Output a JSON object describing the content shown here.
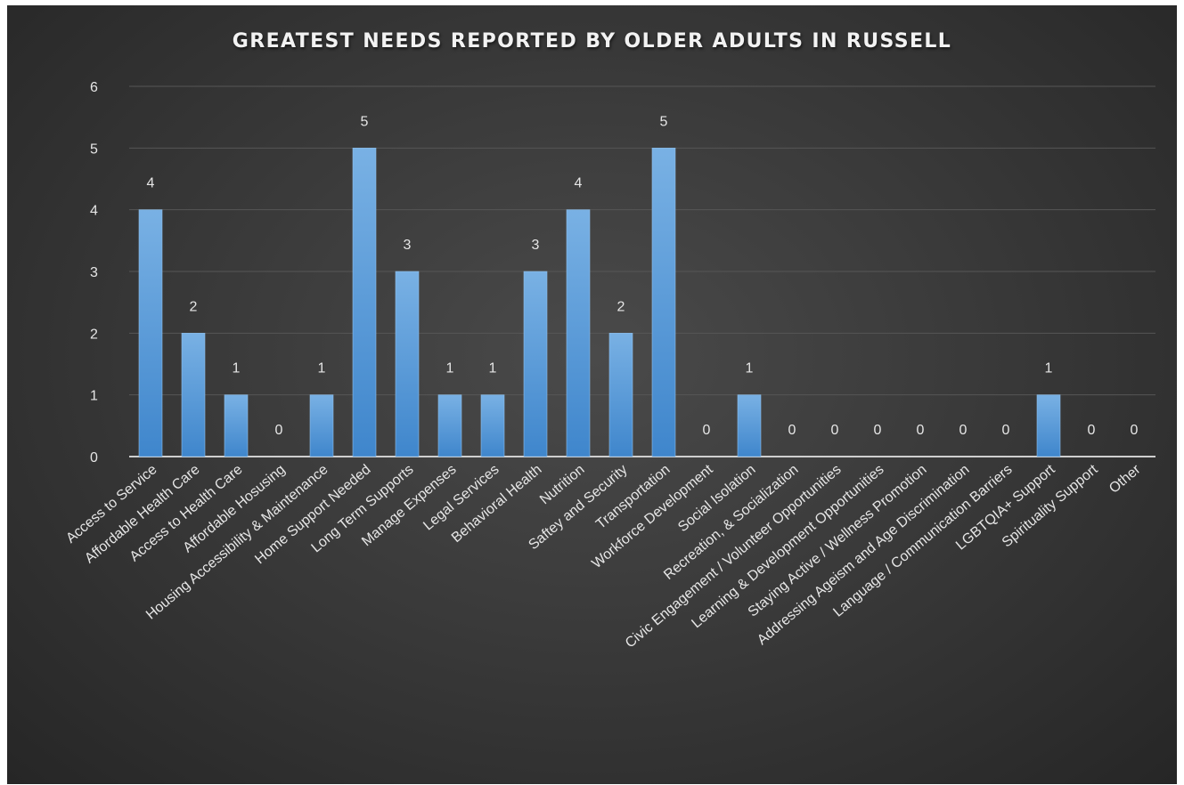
{
  "colors": {
    "bar": "#5b9bd5",
    "background": "#3a3a3a"
  },
  "chart_data": {
    "type": "bar",
    "title": "GREATEST NEEDS REPORTED BY OLDER ADULTS IN RUSSELL",
    "xlabel": "",
    "ylabel": "",
    "ylim": [
      0,
      6
    ],
    "yticks": [
      0,
      1,
      2,
      3,
      4,
      5,
      6
    ],
    "grid": true,
    "legend": "none",
    "categories": [
      "Access to Service",
      "Affordable Health Care",
      "Access to Health Care",
      "Affordable Hosusing",
      "Housing Accessibility & Maintenance",
      "Home Support Needed",
      "Long Term Supports",
      "Manage Expenses",
      "Legal Services",
      "Behavioral Health",
      "Nutrition",
      "Saftey and Security",
      "Transportation",
      "Workforce Development",
      "Social Isolation",
      "Recreation, & Socialization",
      "Civic Engagement / Volunteer Opportunities",
      "Learning & Development Opportunities",
      "Staying Active / Wellness Promotion",
      "Addressing Ageism and Age Discrimination",
      "Language / Communication Barriers",
      "LGBTQIA+ Support",
      "Spirituality Support",
      "Other"
    ],
    "values": [
      4,
      2,
      1,
      0,
      1,
      5,
      3,
      1,
      1,
      3,
      4,
      2,
      5,
      0,
      1,
      0,
      0,
      0,
      0,
      0,
      0,
      1,
      0,
      0
    ],
    "data_labels": [
      "4",
      "2",
      "1",
      "0",
      "1",
      "5",
      "3",
      "1",
      "1",
      "3",
      "4",
      "2",
      "5",
      "0",
      "1",
      "0",
      "0",
      "0",
      "0",
      "0",
      "0",
      "1",
      "0",
      "0"
    ]
  }
}
